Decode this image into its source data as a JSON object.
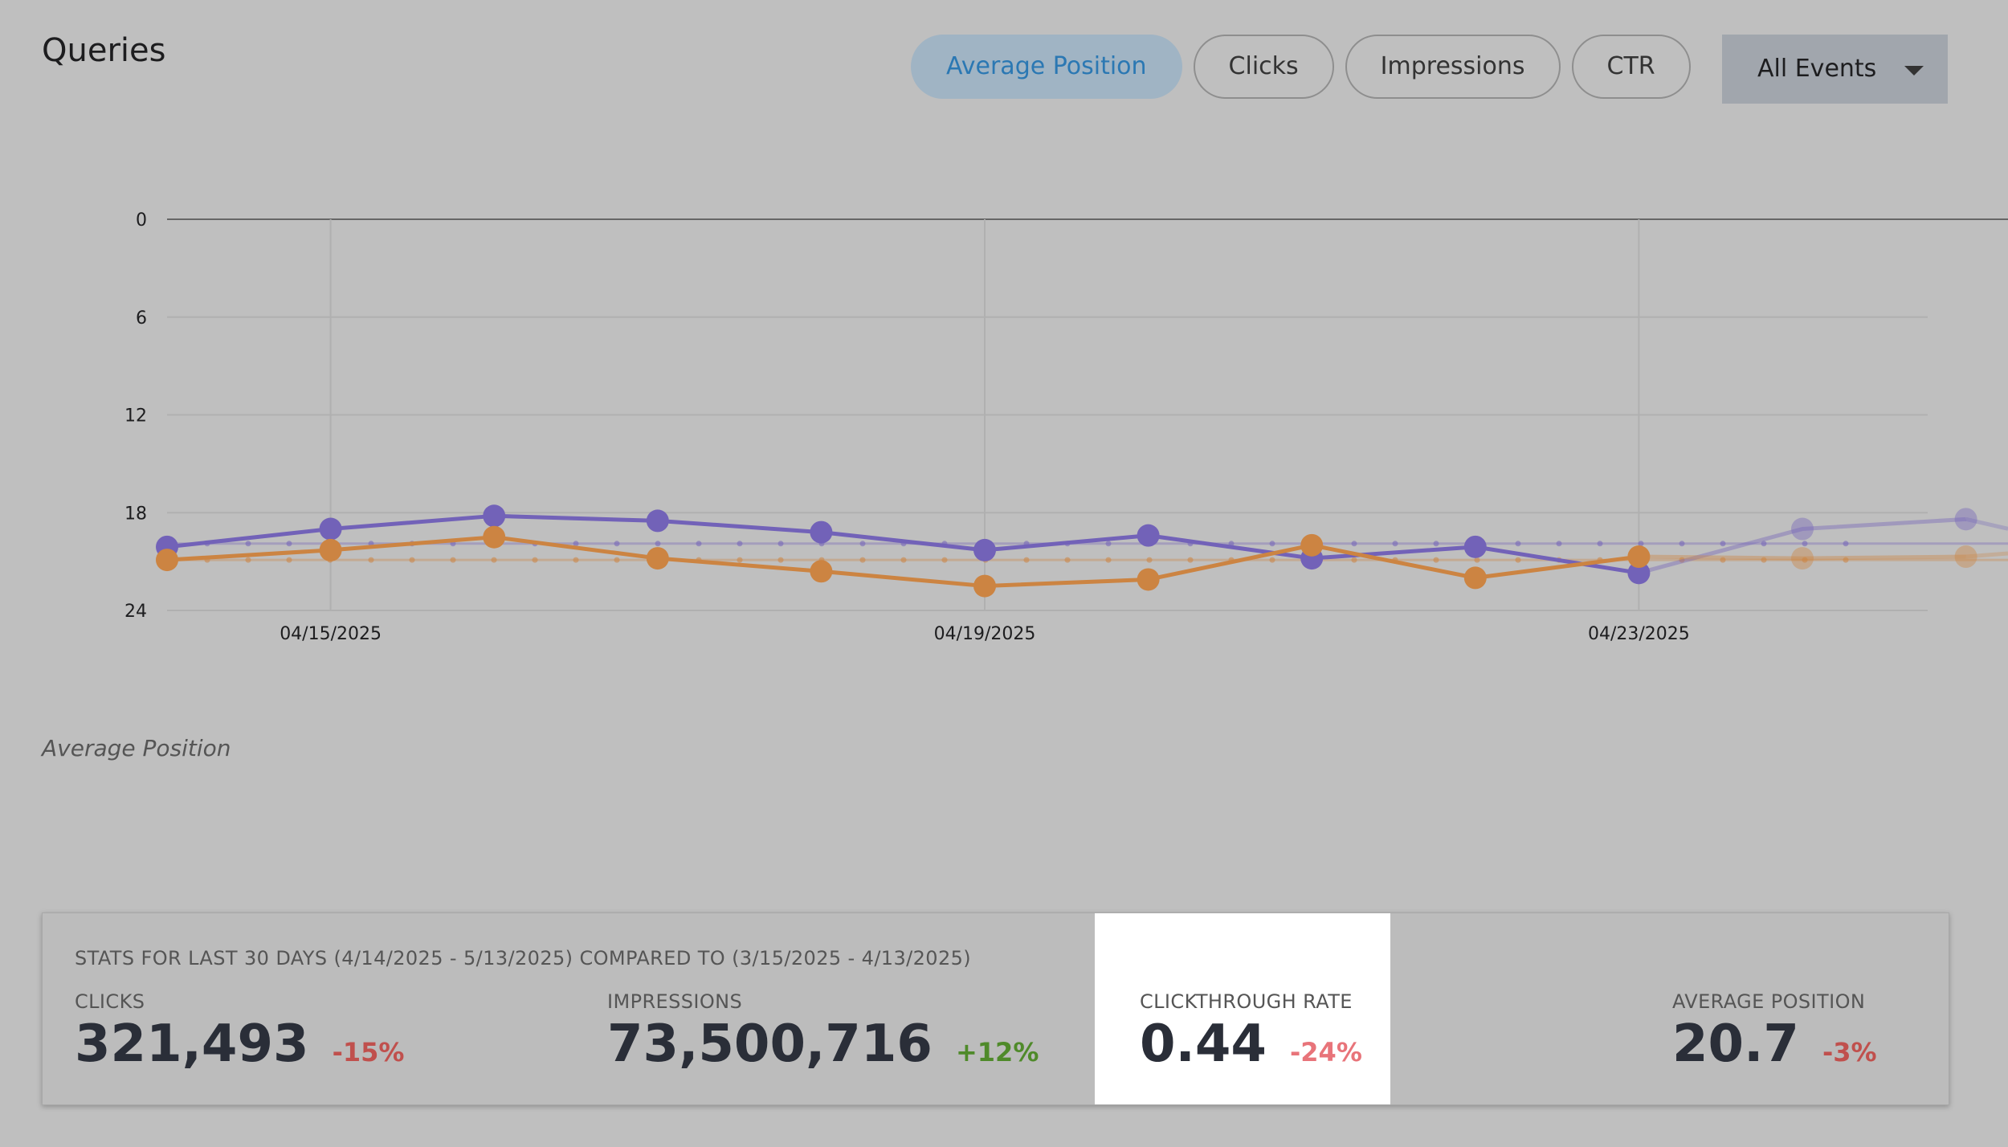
{
  "header": {
    "title": "Queries",
    "tabs": [
      {
        "label": "Average Position",
        "active": true
      },
      {
        "label": "Clicks",
        "active": false
      },
      {
        "label": "Impressions",
        "active": false
      },
      {
        "label": "CTR",
        "active": false
      }
    ],
    "event_filter": {
      "selected": "All Events"
    }
  },
  "chart_caption": "Average Position",
  "colors": {
    "current_series": "#7262b8",
    "comparison_series": "#cc8442",
    "positive_change": "#4f8a2a",
    "negative_change": "#c0504d",
    "active_tab_text": "#2b78b3",
    "active_tab_bg": "#a0b4c4"
  },
  "chart_data": {
    "type": "line",
    "title": "",
    "ylabel": "",
    "xlabel": "",
    "y_inverted": true,
    "ylim": [
      0,
      24
    ],
    "y_ticks": [
      "0",
      "6",
      "12",
      "18",
      "24"
    ],
    "x_tick_labels": [
      {
        "date": "2025-04-15",
        "label": "04/15/2025"
      },
      {
        "date": "2025-04-19",
        "label": "04/19/2025"
      },
      {
        "date": "2025-04-23",
        "label": "04/23/2025"
      }
    ],
    "x": [
      "2025-04-14",
      "2025-04-15",
      "2025-04-16",
      "2025-04-17",
      "2025-04-18",
      "2025-04-19",
      "2025-04-20",
      "2025-04-21",
      "2025-04-22",
      "2025-04-23",
      "2025-04-24",
      "2025-04-25"
    ],
    "faded_from": "2025-04-24",
    "grid": true,
    "series": [
      {
        "color": "#7262b8",
        "values": [
          20.1,
          19.0,
          18.2,
          18.5,
          19.2,
          20.3,
          19.4,
          20.8,
          20.1,
          21.7,
          19.0,
          18.4
        ]
      },
      {
        "color": "#cc8442",
        "values": [
          20.9,
          20.3,
          19.5,
          20.8,
          21.6,
          22.5,
          22.1,
          20.0,
          22.0,
          20.7,
          20.8,
          20.7
        ]
      }
    ],
    "reference_lines": [
      {
        "color": "#7262b8",
        "value": 19.9
      },
      {
        "color": "#cc8442",
        "value": 20.9
      }
    ]
  },
  "stats": {
    "heading": "STATS FOR LAST 30 DAYS (4/14/2025 - 5/13/2025) COMPARED TO (3/15/2025 - 4/13/2025)",
    "clicks": {
      "label": "CLICKS",
      "value": "321,493",
      "change": "-15%",
      "trend": "down"
    },
    "impressions": {
      "label": "IMPRESSIONS",
      "value": "73,500,716",
      "change": "+12%",
      "trend": "up"
    },
    "ctr": {
      "label": "CLICKTHROUGH RATE",
      "value": "0.44",
      "change": "-24%",
      "trend": "down"
    },
    "avg_position": {
      "label": "AVERAGE POSITION",
      "value": "20.7",
      "change": "-3%",
      "trend": "down"
    }
  }
}
